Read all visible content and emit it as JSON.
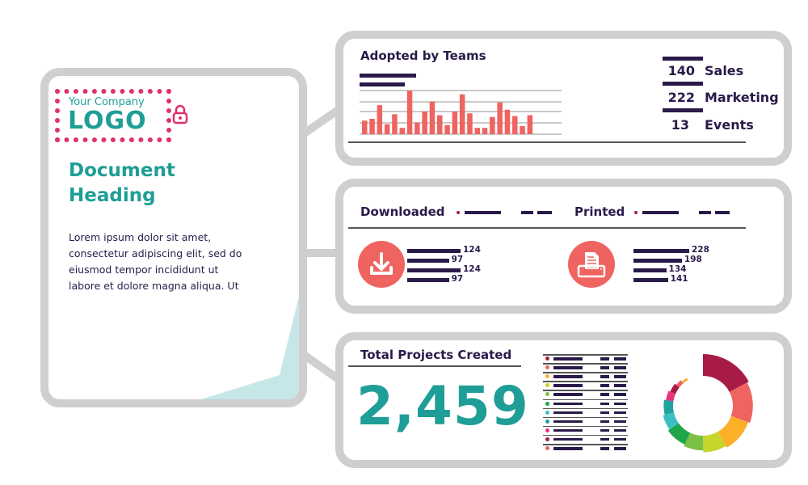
{
  "colors": {
    "navy": "#2a1a4a",
    "teal": "#1e9e96",
    "pink": "#e0306e",
    "coral": "#ef6461",
    "border": "#cfcfd1",
    "accent_bg": "#c5e7e8"
  },
  "document": {
    "logo_small": "Your Company",
    "logo_big": "LOGO",
    "lock_icon": "lock-icon",
    "heading_line1": "Document",
    "heading_line2": "Heading",
    "body_lines": [
      "Lorem ipsum dolor sit amet,",
      "consectetur adipiscing elit, sed do",
      "eiusmod tempor incididunt ut",
      "labore et dolore magna aliqua. Ut"
    ]
  },
  "adopted": {
    "title": "Adopted by Teams",
    "stats": [
      {
        "value": "140",
        "label": "Sales"
      },
      {
        "value": "222",
        "label": "Marketing"
      },
      {
        "value": "13",
        "label": "Events"
      }
    ]
  },
  "downloads": {
    "downloaded_label": "Downloaded",
    "printed_label": "Printed",
    "download_icon": "download-icon",
    "printer_icon": "printer-icon",
    "downloaded_values": [
      "124",
      "97",
      "124",
      "97"
    ],
    "printed_values": [
      "228",
      "198",
      "134",
      "141"
    ]
  },
  "projects": {
    "title": "Total Projects Created",
    "total": "2,459",
    "legend_dot_colors": [
      "#a91b47",
      "#ef6461",
      "#fbb02a",
      "#c7d52c",
      "#7bc043",
      "#1fa64b",
      "#3bbfc1",
      "#20a39e",
      "#e8327c",
      "#a91b47",
      "#ef6461"
    ]
  },
  "chart_data": [
    {
      "type": "bar",
      "title": "Adopted by Teams",
      "values": [
        15,
        17,
        32,
        11,
        22,
        7,
        48,
        13,
        25,
        36,
        21,
        10,
        25,
        44,
        23,
        7,
        7,
        19,
        35,
        27,
        20,
        9,
        21
      ],
      "color": "#ef6461",
      "grid": true
    },
    {
      "type": "bar",
      "orientation": "horizontal",
      "title": "Downloaded",
      "values": [
        124,
        97,
        124,
        97
      ]
    },
    {
      "type": "bar",
      "orientation": "horizontal",
      "title": "Printed",
      "values": [
        228,
        198,
        134,
        141
      ]
    },
    {
      "type": "pie",
      "style": "donut",
      "slices": [
        {
          "value": 17,
          "color": "#a91b47"
        },
        {
          "value": 13,
          "color": "#ef6461"
        },
        {
          "value": 11,
          "color": "#fbb02a"
        },
        {
          "value": 8,
          "color": "#c7d52c"
        },
        {
          "value": 7,
          "color": "#7bc043"
        },
        {
          "value": 8,
          "color": "#1fa64b"
        },
        {
          "value": 6,
          "color": "#3bbfc1"
        },
        {
          "value": 6,
          "color": "#20a39e"
        },
        {
          "value": 4,
          "color": "#e8327c"
        },
        {
          "value": 4,
          "color": "#a91b47"
        },
        {
          "value": 3,
          "color": "#ef6461"
        },
        {
          "value": 3,
          "color": "#fbb02a"
        }
      ]
    }
  ]
}
